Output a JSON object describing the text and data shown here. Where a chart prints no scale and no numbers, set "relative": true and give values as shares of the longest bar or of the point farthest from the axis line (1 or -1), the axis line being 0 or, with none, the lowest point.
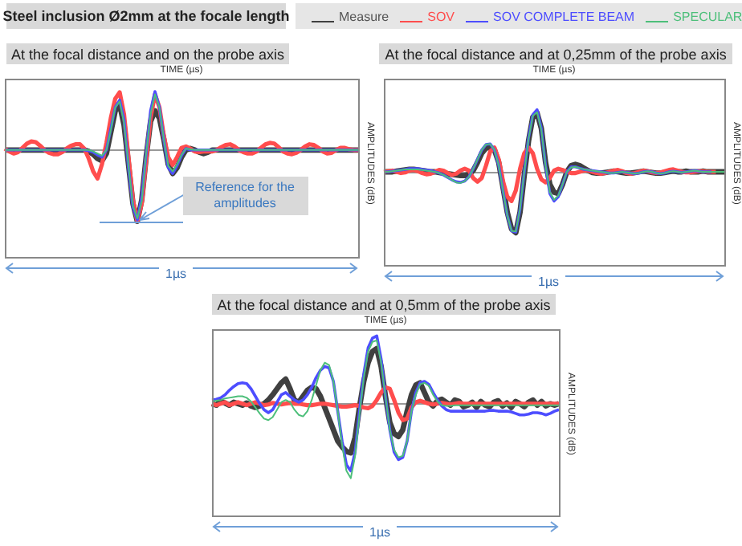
{
  "chart_data": [
    {
      "type": "line",
      "title": "Steel inclusion Ø2mm at the focale length",
      "subtitle": "At the focal distance and on the probe axis",
      "xlabel": "TIME (µs)",
      "y2label": "AMPLITUDES (dB)",
      "relative": true,
      "tick_labels": false,
      "legend": "top",
      "annotations": [
        "1µs",
        "Reference for the amplitudes"
      ],
      "categories": [
        null,
        null,
        null,
        null,
        null,
        null,
        null,
        null,
        null,
        null,
        null,
        null,
        null,
        null,
        null,
        null,
        null,
        null,
        null,
        null,
        null,
        null,
        null,
        null,
        null,
        null,
        null,
        null,
        null,
        null,
        null,
        null,
        null,
        null,
        null,
        null,
        null,
        null,
        null,
        null,
        null,
        null,
        null,
        null,
        null,
        null,
        null,
        null,
        null,
        null,
        null,
        null,
        null,
        null,
        null,
        null,
        null,
        null,
        null,
        null,
        null,
        null,
        null,
        null,
        null,
        null,
        null,
        null,
        null,
        null,
        null,
        null,
        null,
        null,
        null,
        null,
        null,
        null,
        null,
        null,
        null
      ],
      "series": [
        {
          "name": "Measure",
          "color": "#404040",
          "values": [
            0,
            0,
            0,
            0,
            0,
            0,
            0,
            0,
            0,
            0,
            0,
            0,
            0,
            0,
            0,
            0,
            0,
            0,
            0,
            -0.02,
            -0.06,
            -0.12,
            -0.15,
            -0.05,
            0.25,
            0.55,
            0.64,
            0.35,
            -0.2,
            -0.75,
            -1,
            -0.7,
            -0.1,
            0.4,
            0.55,
            0.45,
            0.15,
            -0.2,
            -0.33,
            -0.25,
            -0.1,
            0,
            0.02,
            0,
            -0.03,
            -0.05,
            -0.03,
            0,
            0,
            0,
            0,
            0,
            0,
            0,
            0,
            0,
            0,
            0,
            0,
            0,
            0,
            0,
            0,
            0,
            0,
            0,
            0,
            0,
            0,
            0,
            0,
            0,
            0,
            0,
            0,
            0,
            0,
            0,
            0,
            0,
            0
          ]
        },
        {
          "name": "SOV",
          "color": "#ff4d4d",
          "values": [
            0.02,
            -0.02,
            -0.05,
            -0.03,
            0.03,
            0.09,
            0.12,
            0.11,
            0.06,
            0,
            -0.04,
            -0.06,
            -0.06,
            -0.03,
            0.02,
            0.06,
            0.08,
            0.08,
            0.02,
            -0.12,
            -0.3,
            -0.4,
            -0.2,
            0.1,
            0.45,
            0.72,
            0.81,
            0.5,
            -0.1,
            -0.7,
            -1,
            -0.75,
            -0.15,
            0.45,
            0.78,
            0.6,
            0.2,
            -0.1,
            -0.21,
            -0.1,
            0.03,
            0.05,
            0.02,
            -0.02,
            -0.03,
            -0.02,
            -0.02,
            -0.02,
            0,
            0.04,
            0.07,
            0.08,
            0.05,
            0,
            -0.03,
            -0.05,
            -0.05,
            -0.02,
            0.03,
            0.08,
            0.1,
            0.09,
            0.04,
            -0.02,
            -0.05,
            -0.06,
            -0.04,
            0,
            0.05,
            0.08,
            0.07,
            0.03,
            -0.02,
            -0.05,
            -0.04,
            0,
            0.03,
            0.03,
            0.01,
            0,
            0
          ]
        },
        {
          "name": "SOV COMPLETE BEAM",
          "color": "#4d4dff",
          "values": [
            0,
            0,
            0,
            0,
            0,
            0,
            0,
            0,
            0,
            0,
            0,
            0,
            0,
            0,
            0,
            0,
            0,
            0,
            0,
            -0.01,
            -0.03,
            -0.07,
            -0.1,
            0,
            0.3,
            0.6,
            0.7,
            0.42,
            -0.25,
            -0.8,
            -0.98,
            -0.66,
            -0.05,
            0.55,
            0.82,
            0.6,
            0.15,
            -0.25,
            -0.33,
            -0.22,
            -0.08,
            0.02,
            0,
            0,
            0,
            0,
            0,
            0,
            0,
            0,
            0,
            0,
            0,
            0,
            0,
            0,
            0,
            0,
            0,
            0,
            0,
            0,
            0,
            0,
            0,
            0,
            0,
            0,
            0,
            0,
            0,
            0,
            0,
            0,
            0,
            0,
            0,
            0,
            0,
            0,
            0
          ]
        },
        {
          "name": "SPECULAR",
          "color": "#4dbf7a",
          "values": [
            0,
            0,
            0,
            0,
            0,
            0,
            0,
            0,
            0,
            0,
            0,
            0,
            0,
            0,
            0,
            0,
            0,
            0,
            0,
            0,
            -0.02,
            -0.05,
            -0.08,
            0,
            0.28,
            0.6,
            0.68,
            0.38,
            -0.22,
            -0.78,
            -0.96,
            -0.72,
            -0.05,
            0.5,
            0.78,
            0.6,
            0.15,
            -0.22,
            -0.3,
            -0.2,
            -0.07,
            0.02,
            0.01,
            0,
            0,
            0,
            0,
            0,
            0,
            0,
            0,
            0,
            0,
            0,
            0,
            0,
            0,
            0,
            0,
            0,
            0,
            0,
            0,
            0,
            0,
            0,
            0,
            0,
            0,
            0,
            0,
            0,
            0,
            0,
            0,
            0,
            0,
            0,
            0,
            0,
            0
          ]
        }
      ]
    },
    {
      "type": "line",
      "subtitle": "At the focal distance and at 0,25mm of the probe axis",
      "xlabel": "TIME (µs)",
      "y2label": "AMPLITUDES (dB)",
      "relative": true,
      "tick_labels": false,
      "annotations": [
        "1µs"
      ],
      "categories": [
        null,
        null,
        null,
        null,
        null,
        null,
        null,
        null,
        null,
        null,
        null,
        null,
        null,
        null,
        null,
        null,
        null,
        null,
        null,
        null,
        null,
        null,
        null,
        null,
        null,
        null,
        null,
        null,
        null,
        null,
        null,
        null,
        null,
        null,
        null,
        null,
        null,
        null,
        null,
        null,
        null,
        null,
        null,
        null,
        null,
        null,
        null,
        null,
        null,
        null,
        null,
        null,
        null,
        null,
        null,
        null,
        null,
        null,
        null,
        null,
        null,
        null,
        null,
        null,
        null,
        null,
        null,
        null,
        null,
        null,
        null,
        null,
        null,
        null,
        null,
        null,
        null,
        null,
        null,
        null,
        null
      ],
      "series": [
        {
          "color": "#404040",
          "values": [
            0,
            0,
            0,
            0.01,
            0.02,
            0.03,
            0.04,
            0.04,
            0.03,
            0.02,
            0.01,
            0,
            0,
            -0.01,
            -0.02,
            -0.03,
            -0.04,
            -0.05,
            -0.06,
            -0.06,
            -0.04,
            0.02,
            0.15,
            0.3,
            0.38,
            0.4,
            0.35,
            0.15,
            -0.25,
            -0.65,
            -0.92,
            -0.98,
            -0.65,
            -0.05,
            0.5,
            0.88,
            0.95,
            0.7,
            0.15,
            -0.2,
            -0.33,
            -0.35,
            -0.2,
            0,
            0.1,
            0.12,
            0.1,
            0.06,
            0.02,
            -0.01,
            -0.02,
            -0.02,
            -0.01,
            0,
            0.01,
            0,
            -0.01,
            -0.02,
            -0.02,
            -0.01,
            0,
            0.01,
            0,
            -0.01,
            -0.02,
            -0.02,
            -0.01,
            0,
            0.01,
            0,
            0,
            0.01,
            0,
            0,
            0,
            0.01,
            0,
            0,
            0,
            0,
            0
          ]
        },
        {
          "color": "#ff4d4d",
          "values": [
            0,
            0.01,
            0.02,
            0,
            -0.02,
            -0.01,
            0.02,
            0.03,
            0.01,
            -0.02,
            -0.04,
            -0.03,
            0,
            0.03,
            0.02,
            -0.02,
            -0.05,
            -0.03,
            0.02,
            0.05,
            0.02,
            -0.1,
            -0.16,
            -0.1,
            0.1,
            0.33,
            0.39,
            0.2,
            -0.15,
            -0.4,
            -0.47,
            -0.3,
            0.05,
            0.3,
            0.39,
            0.3,
            0.05,
            -0.12,
            -0.17,
            -0.1,
            0.02,
            0.05,
            0.03,
            0,
            -0.02,
            -0.02,
            0,
            0.02,
            0.02,
            0,
            -0.02,
            -0.03,
            -0.02,
            0,
            0.02,
            0.03,
            0.01,
            -0.02,
            -0.03,
            -0.02,
            0,
            0.02,
            0.01,
            -0.01,
            -0.02,
            -0.01,
            0.01,
            0.03,
            0.04,
            0.02,
            0,
            -0.01,
            -0.01,
            0,
            0.01,
            0.01,
            0,
            0,
            0,
            null,
            null
          ]
        },
        {
          "color": "#4d4dff",
          "values": [
            0,
            0,
            0.01,
            0.02,
            0.03,
            0.04,
            0.05,
            0.05,
            0.05,
            0.04,
            0.03,
            0.02,
            0,
            -0.02,
            -0.05,
            -0.09,
            -0.13,
            -0.16,
            -0.17,
            -0.15,
            -0.08,
            0.05,
            0.2,
            0.35,
            0.44,
            0.45,
            0.35,
            0.1,
            -0.3,
            -0.7,
            -0.95,
            -0.97,
            -0.6,
            0,
            0.55,
            0.92,
            1,
            0.7,
            0.1,
            -0.35,
            -0.47,
            -0.4,
            -0.2,
            0,
            0.08,
            0.08,
            0.06,
            0.04,
            0.03,
            0.02,
            0.01,
            0,
            -0.01,
            -0.02,
            -0.02,
            -0.01,
            0,
            -0.01,
            -0.02,
            -0.03,
            -0.02,
            0,
            0.01,
            0,
            -0.02,
            -0.03,
            -0.02,
            0,
            0.01,
            0,
            -0.01,
            0,
            0.01,
            0.02,
            0.01,
            0,
            0,
            0,
            null,
            null,
            null
          ]
        },
        {
          "color": "#4dbf7a",
          "values": [
            0,
            0,
            0.01,
            0.02,
            0.03,
            0.04,
            0.04,
            0.04,
            0.04,
            0.03,
            0.02,
            0.01,
            0,
            -0.02,
            -0.05,
            -0.09,
            -0.13,
            -0.17,
            -0.18,
            -0.15,
            -0.08,
            0.05,
            0.2,
            0.35,
            0.44,
            0.45,
            0.35,
            0.1,
            -0.3,
            -0.7,
            -0.95,
            -0.96,
            -0.6,
            0,
            0.53,
            0.9,
            0.96,
            0.68,
            0.1,
            -0.33,
            -0.45,
            -0.38,
            -0.2,
            0,
            0.07,
            0.08,
            0.06,
            0.04,
            0.03,
            0.02,
            0.01,
            0,
            -0.01,
            -0.02,
            -0.02,
            -0.01,
            0,
            -0.01,
            -0.02,
            -0.03,
            -0.02,
            0,
            0.01,
            0,
            -0.02,
            -0.03,
            -0.02,
            0,
            0.01,
            0,
            -0.01,
            0,
            0.01,
            0.02,
            0.01,
            0,
            0,
            0,
            0,
            0,
            0
          ]
        }
      ]
    },
    {
      "type": "line",
      "subtitle": "At the focal distance and at 0,5mm of the probe axis",
      "xlabel": "TIME (µs)",
      "y2label": "AMPLITUDES (dB)",
      "relative": true,
      "tick_labels": false,
      "annotations": [
        "1µs"
      ],
      "categories": [
        null,
        null,
        null,
        null,
        null,
        null,
        null,
        null,
        null,
        null,
        null,
        null,
        null,
        null,
        null,
        null,
        null,
        null,
        null,
        null,
        null,
        null,
        null,
        null,
        null,
        null,
        null,
        null,
        null,
        null,
        null,
        null,
        null,
        null,
        null,
        null,
        null,
        null,
        null,
        null,
        null,
        null,
        null,
        null,
        null,
        null,
        null,
        null,
        null,
        null,
        null,
        null,
        null,
        null,
        null,
        null,
        null,
        null,
        null,
        null,
        null,
        null,
        null,
        null,
        null,
        null,
        null,
        null,
        null,
        null,
        null,
        null,
        null,
        null,
        null,
        null,
        null,
        null,
        null,
        null,
        null
      ],
      "series": [
        {
          "color": "#404040",
          "values": [
            0,
            -0.02,
            0.03,
            0.01,
            -0.02,
            0.02,
            0,
            -0.02,
            0.01,
            -0.03,
            -0.05,
            -0.03,
            0,
            0.05,
            0.12,
            0.2,
            0.28,
            0.33,
            0.2,
            0.05,
            0.02,
            0.1,
            0.18,
            0.22,
            0.2,
            0.1,
            -0.05,
            -0.2,
            -0.35,
            -0.5,
            -0.58,
            -0.64,
            -0.66,
            -0.45,
            -0.05,
            0.3,
            0.55,
            0.7,
            0.74,
            0.5,
            0.1,
            -0.25,
            -0.4,
            -0.44,
            -0.35,
            -0.1,
            0.12,
            0.25,
            0.28,
            0.15,
            0.02,
            -0.03,
            0.04,
            0.06,
            0.02,
            -0.02,
            0.05,
            0.03,
            -0.04,
            -0.02,
            0.02,
            -0.05,
            0.03,
            -0.02,
            -0.04,
            0.02,
            0.04,
            -0.03,
            0.01,
            -0.05,
            0.03,
            0,
            -0.04,
            0.02,
            0.05,
            -0.02,
            0.03,
            -0.03,
            0,
            -0.02,
            0
          ]
        },
        {
          "color": "#ff4d4d",
          "values": [
            0,
            -0.02,
            0,
            0.02,
            -0.02,
            0,
            0.02,
            0,
            -0.02,
            0,
            0.02,
            0,
            -0.02,
            -0.01,
            0.01,
            0,
            -0.01,
            0,
            0.01,
            0,
            0,
            -0.01,
            -0.02,
            -0.02,
            -0.01,
            0,
            0,
            -0.01,
            -0.02,
            -0.03,
            -0.04,
            -0.04,
            -0.03,
            -0.02,
            -0.03,
            -0.05,
            -0.06,
            -0.03,
            0.05,
            0.15,
            0.22,
            0.2,
            0.05,
            -0.12,
            -0.22,
            -0.2,
            -0.05,
            0.02,
            0.04,
            0.02,
            0,
            -0.01,
            0,
            0.01,
            0,
            -0.01,
            0,
            0.01,
            0,
            0,
            0,
            0,
            0,
            0,
            0,
            0,
            0,
            0,
            0,
            0,
            0,
            0,
            0,
            0,
            0,
            0,
            0,
            0,
            0,
            0,
            0
          ]
        },
        {
          "color": "#4d4dff",
          "values": [
            0.05,
            0.06,
            0.08,
            0.12,
            0.18,
            0.23,
            0.27,
            0.28,
            0.27,
            0.2,
            0.1,
            0,
            -0.08,
            -0.12,
            -0.08,
            0.02,
            0.12,
            0.15,
            0.1,
            0.05,
            0.02,
            0.05,
            0.12,
            0.22,
            0.35,
            0.45,
            0.5,
            0.48,
            0.3,
            -0.1,
            -0.5,
            -0.82,
            -0.9,
            -0.65,
            -0.1,
            0.4,
            0.75,
            0.88,
            0.91,
            0.6,
            0.1,
            -0.35,
            -0.65,
            -0.75,
            -0.72,
            -0.5,
            -0.1,
            0.15,
            0.28,
            0.3,
            0.26,
            0.15,
            0.05,
            -0.03,
            -0.08,
            -0.1,
            -0.1,
            -0.1,
            -0.1,
            -0.1,
            -0.1,
            -0.1,
            -0.1,
            -0.1,
            -0.09,
            -0.09,
            -0.1,
            -0.1,
            -0.1,
            -0.11,
            -0.13,
            -0.15,
            -0.15,
            -0.14,
            -0.12,
            -0.12,
            -0.13,
            -0.15,
            -0.13,
            -0.1,
            -0.08
          ]
        },
        {
          "color": "#4dbf7a",
          "values": [
            0.03,
            0.04,
            0.05,
            0.07,
            0.08,
            0.09,
            0.1,
            0.1,
            0.08,
            0.03,
            -0.05,
            -0.13,
            -0.2,
            -0.22,
            -0.18,
            -0.08,
            0.02,
            0.05,
            0.02,
            -0.08,
            -0.15,
            -0.17,
            -0.1,
            0.05,
            0.25,
            0.45,
            0.55,
            0.52,
            0.3,
            -0.1,
            -0.55,
            -0.9,
            -1,
            -0.7,
            -0.15,
            0.35,
            0.7,
            0.83,
            0.85,
            0.55,
            0.1,
            -0.35,
            -0.62,
            -0.72,
            -0.7,
            -0.5,
            -0.1,
            0.12,
            0.26,
            0.28,
            0.24,
            0.12,
            0.03,
            -0.02,
            -0.03,
            -0.03,
            -0.02,
            -0.02,
            -0.02,
            -0.02,
            -0.02,
            -0.02,
            -0.02,
            -0.02,
            -0.02,
            -0.02,
            -0.02,
            -0.02,
            -0.02,
            -0.02,
            -0.02,
            -0.02,
            -0.02,
            -0.02,
            -0.02,
            -0.02,
            -0.02,
            -0.02,
            -0.02,
            -0.02,
            -0.02
          ]
        }
      ]
    }
  ]
}
